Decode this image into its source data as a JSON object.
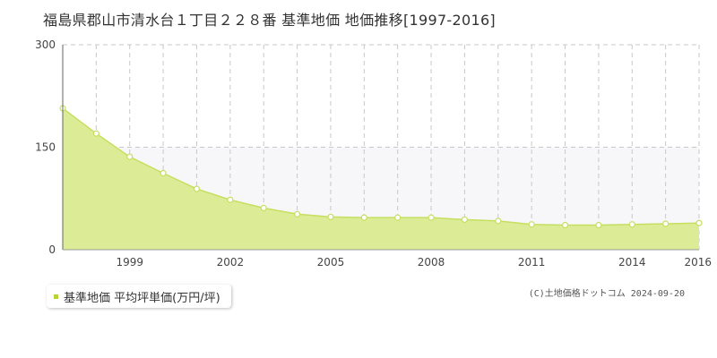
{
  "title": "福島県郡山市清水台１丁目２２８番 基準地価 地価推移[1997-2016]",
  "legend": {
    "label": "基準地価 平均坪単価(万円/坪)",
    "marker_color": "#b5d334"
  },
  "copyright": "(C)土地価格ドットコム 2024-09-20",
  "colors": {
    "fill": "#dcec96",
    "line": "#c5df60",
    "point_fill": "#ffffff",
    "band": "#f7f6f8",
    "grid": "#c8c8c8"
  },
  "chart_data": {
    "type": "area",
    "x": [
      1997,
      1998,
      1999,
      2000,
      2001,
      2002,
      2003,
      2004,
      2005,
      2006,
      2007,
      2008,
      2009,
      2010,
      2011,
      2012,
      2013,
      2014,
      2015,
      2016
    ],
    "series": [
      {
        "values": [
          207,
          170,
          136,
          112,
          89,
          73,
          61,
          52,
          48,
          47,
          47,
          47,
          44,
          42,
          37,
          36,
          36,
          37,
          38,
          39
        ]
      }
    ],
    "xlim": [
      1997,
      2016
    ],
    "ylim": [
      0,
      300
    ],
    "y_ticks": [
      0,
      150,
      300
    ],
    "x_tick_labels": [
      "1999",
      "2002",
      "2005",
      "2008",
      "2011",
      "2014",
      "2016"
    ],
    "x_tick_values": [
      1999,
      2002,
      2005,
      2008,
      2011,
      2014,
      2016
    ],
    "grid": true
  }
}
